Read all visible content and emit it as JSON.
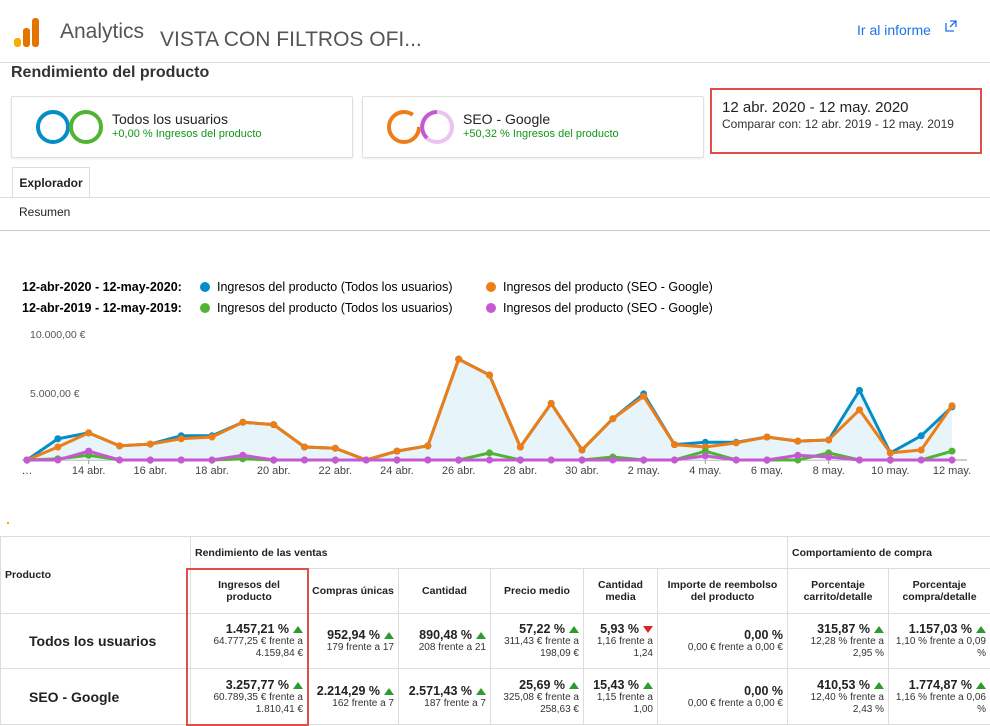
{
  "header": {
    "product": "Analytics",
    "view": "VISTA CON FILTROS OFI...",
    "link": "Ir al informe"
  },
  "page_title": "Rendimiento del producto",
  "segments": [
    {
      "name": "Todos los usuarios",
      "note": "+0,00 % Ingresos del producto"
    },
    {
      "name": "SEO - Google",
      "note": "+50,32 % Ingresos del producto"
    }
  ],
  "date_range": {
    "main": "12 abr. 2020 - 12 may. 2020",
    "compare": "Comparar con: 12 abr. 2019 - 12 may. 2019"
  },
  "tabs": [
    "Explorador"
  ],
  "subtab": "Resumen",
  "chart_data": {
    "type": "line",
    "periods": [
      "12-abr-2020 - 12-may-2020:",
      "12-abr-2019 - 12-may-2019:"
    ],
    "categories": [
      "…",
      null,
      "14 abr.",
      null,
      "16 abr.",
      null,
      "18 abr.",
      null,
      "20 abr.",
      null,
      "22 abr.",
      null,
      "24 abr.",
      null,
      "26 abr.",
      null,
      "28 abr.",
      null,
      "30 abr.",
      null,
      "2 may.",
      null,
      "4 may.",
      null,
      "6 may.",
      null,
      "8 may.",
      null,
      "10 may.",
      null,
      "12 may."
    ],
    "series": [
      {
        "name": "Ingresos del producto (Todos los usuarios)",
        "color": "#058dc7",
        "values": [
          0,
          1800,
          2300,
          1200,
          1350,
          2050,
          2050,
          3200,
          3000,
          1100,
          1000,
          0,
          750,
          1200,
          8550,
          7200,
          1100,
          4800,
          850,
          3500,
          5600,
          1300,
          1500,
          1500,
          1950,
          1600,
          1700,
          5900,
          600,
          2050,
          4500
        ]
      },
      {
        "name": "Ingresos del producto (SEO - Google)",
        "color": "#ed7e17",
        "values": [
          0,
          1100,
          2300,
          1200,
          1350,
          1800,
          1950,
          3200,
          3000,
          1100,
          1000,
          0,
          750,
          1200,
          8550,
          7200,
          1100,
          4800,
          850,
          3500,
          5400,
          1300,
          1100,
          1450,
          1950,
          1600,
          1700,
          4250,
          600,
          850,
          4600
        ]
      },
      {
        "name": "Ingresos del producto (Todos los usuarios)",
        "color": "#50b432",
        "values": [
          0,
          100,
          400,
          0,
          0,
          0,
          0,
          100,
          0,
          0,
          0,
          0,
          0,
          0,
          0,
          600,
          0,
          0,
          0,
          250,
          0,
          0,
          750,
          0,
          0,
          0,
          600,
          0,
          0,
          0,
          750
        ]
      },
      {
        "name": "Ingresos del producto (SEO - Google)",
        "color": "#c659d3",
        "values": [
          0,
          0,
          750,
          0,
          0,
          0,
          0,
          400,
          0,
          0,
          0,
          0,
          0,
          0,
          0,
          0,
          0,
          0,
          0,
          0,
          0,
          0,
          350,
          0,
          0,
          400,
          250,
          0,
          0,
          0,
          0
        ]
      }
    ],
    "ylim": [
      0,
      10000
    ],
    "yticks": [
      {
        "value": 5000,
        "label": "5.000,00 €"
      },
      {
        "value": 10000,
        "label": "10.000,00 €"
      }
    ],
    "grid": false
  },
  "table": {
    "first_header": "Producto",
    "groups": [
      {
        "label": "Rendimiento de las ventas",
        "span": 6
      },
      {
        "label": "Comportamiento de compra",
        "span": 2
      }
    ],
    "columns": [
      "Ingresos del producto",
      "Compras únicas",
      "Cantidad",
      "Precio medio",
      "Cantidad media",
      "Importe de reembolso del producto",
      "Porcentaje carrito/detalle",
      "Porcentaje compra/detalle"
    ],
    "rows": [
      {
        "name": "Todos los usuarios",
        "cells": [
          {
            "main": "1.457,21 %",
            "trend": "up",
            "sub": "64.777,25 € frente a 4.159,84 €"
          },
          {
            "main": "952,94 %",
            "trend": "up",
            "sub": "179 frente a 17"
          },
          {
            "main": "890,48 %",
            "trend": "up",
            "sub": "208 frente a 21"
          },
          {
            "main": "57,22 %",
            "trend": "up",
            "sub": "311,43 € frente a 198,09 €"
          },
          {
            "main": "5,93 %",
            "trend": "down",
            "sub": "1,16 frente a 1,24"
          },
          {
            "main": "0,00 %",
            "trend": "none",
            "sub": "0,00 € frente a 0,00 €"
          },
          {
            "main": "315,87 %",
            "trend": "up",
            "sub": "12,28 % frente a 2,95 %"
          },
          {
            "main": "1.157,03 %",
            "trend": "up",
            "sub": "1,10 % frente a 0,09 %"
          }
        ]
      },
      {
        "name": "SEO - Google",
        "cells": [
          {
            "main": "3.257,77 %",
            "trend": "up",
            "sub": "60.789,35 € frente a 1.810,41 €"
          },
          {
            "main": "2.214,29 %",
            "trend": "up",
            "sub": "162 frente a 7"
          },
          {
            "main": "2.571,43 %",
            "trend": "up",
            "sub": "187 frente a 7"
          },
          {
            "main": "25,69 %",
            "trend": "up",
            "sub": "325,08 € frente a 258,63 €"
          },
          {
            "main": "15,43 %",
            "trend": "up",
            "sub": "1,15 frente a 1,00"
          },
          {
            "main": "0,00 %",
            "trend": "none",
            "sub": "0,00 € frente a 0,00 €"
          },
          {
            "main": "410,53 %",
            "trend": "up",
            "sub": "12,40 % frente a 2,43 %"
          },
          {
            "main": "1.774,87 %",
            "trend": "up",
            "sub": "1,16 % frente a 0,06 %"
          }
        ]
      }
    ]
  }
}
